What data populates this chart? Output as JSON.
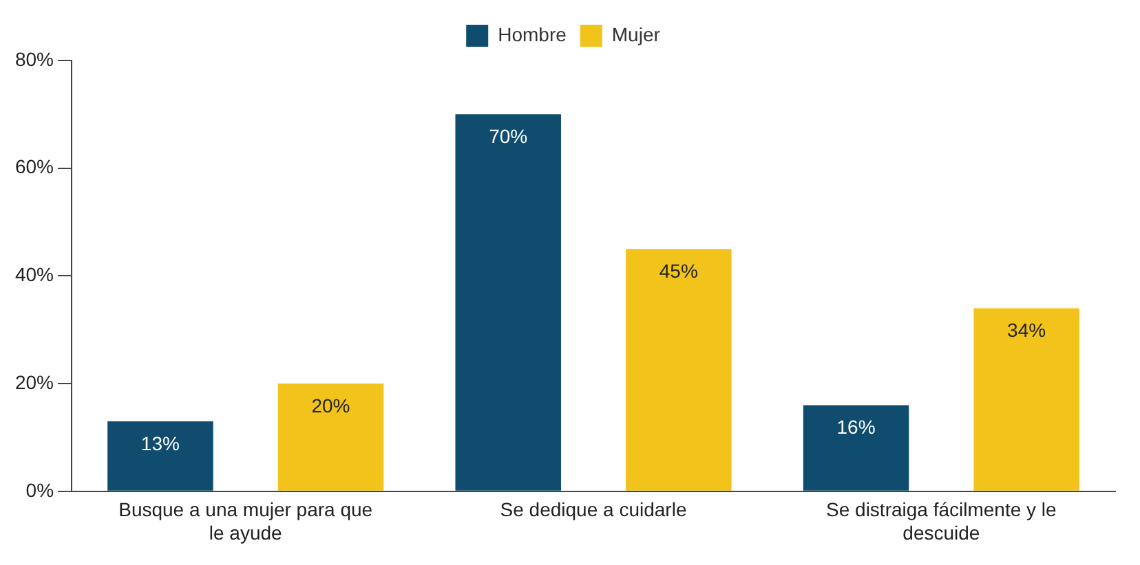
{
  "chart_data": {
    "type": "bar",
    "categories": [
      "Busque a una mujer para que le ayude",
      "Se dedique a cuidarle",
      "Se distraiga fácilmente y le descuide"
    ],
    "series": [
      {
        "name": "Hombre",
        "color": "#0f4c6e",
        "values": [
          13,
          70,
          16
        ],
        "value_labels": [
          "13%",
          "70%",
          "16%"
        ]
      },
      {
        "name": "Mujer",
        "color": "#f2c31b",
        "values": [
          20,
          45,
          34
        ],
        "value_labels": [
          "20%",
          "45%",
          "34%"
        ]
      }
    ],
    "ylim": [
      0,
      80
    ],
    "yticks": [
      {
        "value": 0,
        "label": "0%"
      },
      {
        "value": 20,
        "label": "20%"
      },
      {
        "value": 40,
        "label": "40%"
      },
      {
        "value": 60,
        "label": "60%"
      },
      {
        "value": 80,
        "label": "80%"
      }
    ],
    "grid": false,
    "legend": "top"
  }
}
